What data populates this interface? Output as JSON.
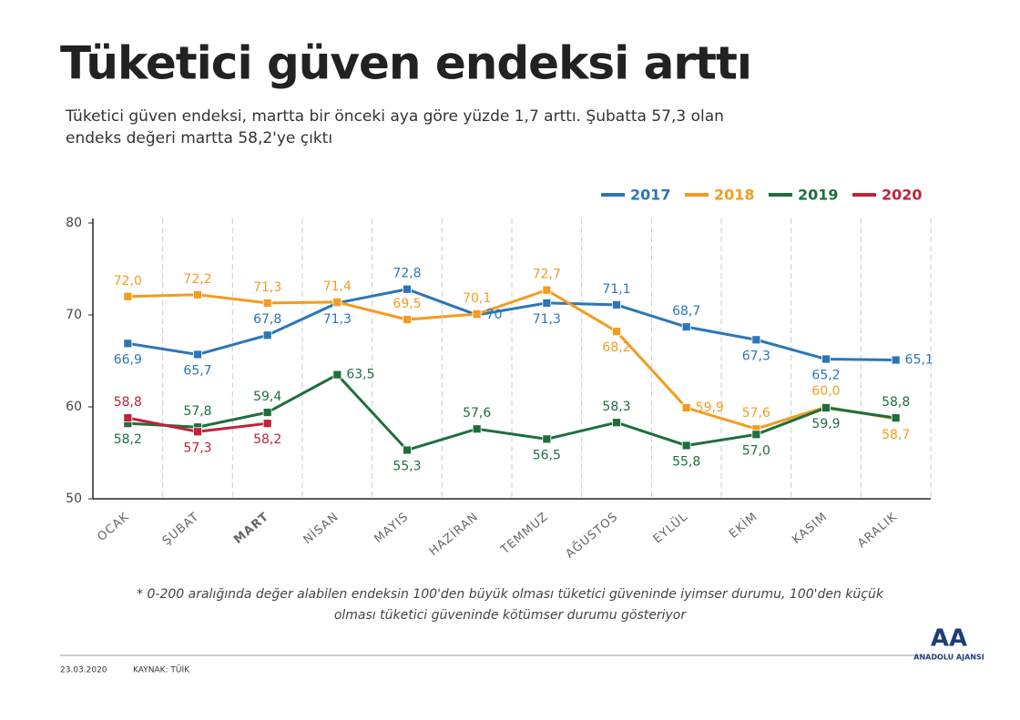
{
  "chart_data": {
    "type": "line",
    "title": "Tüketici güven endeksi arttı",
    "subtitle": [
      "Tüketici güven endeksi, martta bir önceki aya göre yüzde 1,7 arttı. Şubatta 57,3 olan",
      "endeks değeri martta 58,2'ye çıktı"
    ],
    "categories": [
      "OCAK",
      "ŞUBAT",
      "MART",
      "NİSAN",
      "MAYIS",
      "HAZİRAN",
      "TEMMUZ",
      "AĞUSTOS",
      "EYLÜL",
      "EKİM",
      "KASIM",
      "ARALIK"
    ],
    "series": [
      {
        "name": "2017",
        "color": "#2b76b9",
        "values": [
          66.9,
          65.7,
          67.8,
          71.3,
          72.8,
          70,
          71.3,
          71.1,
          68.7,
          67.3,
          65.2,
          65.1
        ],
        "value_labels": [
          "66,9",
          "65,7",
          "67,8",
          "71,3",
          "72,8",
          "70",
          "71,3",
          "71,1",
          "68,7",
          "67,3",
          "65,2",
          "65,1"
        ]
      },
      {
        "name": "2018",
        "color": "#f39c1f",
        "values": [
          72.0,
          72.2,
          71.3,
          71.4,
          69.5,
          70.1,
          72.7,
          68.2,
          59.9,
          57.6,
          60.0,
          58.7
        ],
        "value_labels": [
          "72,0",
          "72,2",
          "71,3",
          "71,4",
          "69,5",
          "70,1",
          "72,7",
          "68,2",
          "59,9",
          "57,6",
          "60,0",
          "58,7"
        ]
      },
      {
        "name": "2019",
        "color": "#1e6f3d",
        "values": [
          58.2,
          57.8,
          59.4,
          63.5,
          55.3,
          57.6,
          56.5,
          58.3,
          55.8,
          57.0,
          59.9,
          58.8
        ],
        "value_labels": [
          "58,2",
          "57,8",
          "59,4",
          "63,5",
          "55,3",
          "57,6",
          "56,5",
          "58,3",
          "55,8",
          "57,0",
          "59,9",
          "58,8"
        ]
      },
      {
        "name": "2020",
        "color": "#c0223a",
        "values": [
          58.8,
          57.3,
          58.2,
          null,
          null,
          null,
          null,
          null,
          null,
          null,
          null,
          null
        ],
        "value_labels": [
          "58,8",
          "57,3",
          "58,2",
          null,
          null,
          null,
          null,
          null,
          null,
          null,
          null,
          null
        ]
      }
    ],
    "ylim": [
      50,
      80
    ],
    "yticks": [
      50,
      60,
      70,
      80
    ],
    "footnote": [
      "* 0-200 aralığında değer alabilen endeksin 100'den büyük olması tüketici güveninde iyimser durumu, 100'den küçük",
      "olması tüketici güveninde kötümser durumu gösteriyor"
    ],
    "date": "23.03.2020",
    "source": "KAYNAK: TÜİK",
    "logo": "AA",
    "agency": "ANADOLU AJANSI"
  }
}
